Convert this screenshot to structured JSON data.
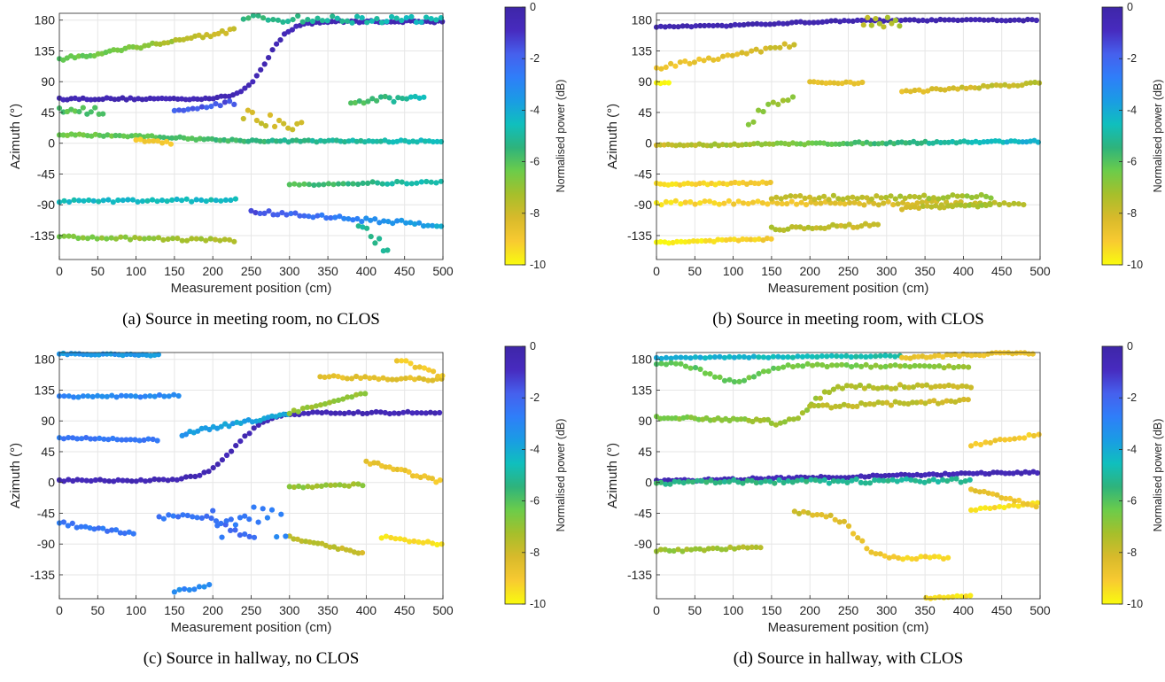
{
  "panel_defs": [
    {
      "caption": "(a) Source in meeting room, no CLOS",
      "tracks": [
        {
          "x0": 0,
          "x1": 500,
          "y0": 65,
          "y1": 178,
          "pw0": -0.5,
          "pw1": -0.5,
          "shape": "sig",
          "mid": 270,
          "w": 60,
          "jit": 1.5
        },
        {
          "x0": 0,
          "x1": 500,
          "y0": 12,
          "y1": 3,
          "pw0": -6.5,
          "pw1": -4.5,
          "shape": "sig",
          "mid": 160,
          "w": 150,
          "jit": 1.5
        },
        {
          "x0": 0,
          "x1": 230,
          "y0": 122,
          "y1": 165,
          "pw0": -6,
          "pw1": -8,
          "shape": "lin",
          "jit": 3
        },
        {
          "x0": 240,
          "x1": 500,
          "y0": 182,
          "y1": 180,
          "pw0": -5.5,
          "pw1": -4.5,
          "shape": "lin",
          "jit": 5
        },
        {
          "x0": 0,
          "x1": 230,
          "y0": -85,
          "y1": -83,
          "pw0": -4.5,
          "pw1": -4.5,
          "shape": "lin",
          "jit": 2
        },
        {
          "x0": 300,
          "x1": 500,
          "y0": -60,
          "y1": -57,
          "pw0": -6,
          "pw1": -4.5,
          "shape": "lin",
          "jit": 2
        },
        {
          "x0": 0,
          "x1": 230,
          "y0": -137,
          "y1": -142,
          "pw0": -6.5,
          "pw1": -7.5,
          "shape": "lin",
          "jit": 2
        },
        {
          "x0": 250,
          "x1": 500,
          "y0": -100,
          "y1": -120,
          "pw0": -1.5,
          "pw1": -4,
          "shape": "lin",
          "jit": 3
        },
        {
          "x0": 100,
          "x1": 150,
          "y0": 5,
          "y1": 0,
          "pw0": -9,
          "pw1": -9,
          "shape": "lin",
          "jit": 2
        },
        {
          "x0": 0,
          "x1": 60,
          "y0": 50,
          "y1": 45,
          "pw0": -6,
          "pw1": -6,
          "shape": "lin",
          "jit": 6
        },
        {
          "x0": 380,
          "x1": 480,
          "y0": 60,
          "y1": 68,
          "pw0": -6,
          "pw1": -4.5,
          "shape": "lin",
          "jit": 5
        },
        {
          "x0": 390,
          "x1": 430,
          "y0": -120,
          "y1": -160,
          "pw0": -5,
          "pw1": -5,
          "shape": "lin",
          "jit": 8
        },
        {
          "x0": 240,
          "x1": 320,
          "y0": 40,
          "y1": 30,
          "pw0": -8,
          "pw1": -8,
          "shape": "lin",
          "jit": 12
        },
        {
          "x0": 150,
          "x1": 230,
          "y0": 45,
          "y1": 60,
          "pw0": -2,
          "pw1": -1.5,
          "shape": "lin",
          "jit": 3
        }
      ]
    },
    {
      "caption": "(b) Source in meeting room, with CLOS",
      "tracks": [
        {
          "x0": 0,
          "x1": 500,
          "y0": 170,
          "y1": 180,
          "pw0": -0.3,
          "pw1": -0.3,
          "shape": "sig",
          "mid": 150,
          "w": 200,
          "jit": 1
        },
        {
          "x0": 0,
          "x1": 500,
          "y0": -3,
          "y1": 3,
          "pw0": -8,
          "pw1": -4,
          "shape": "lin",
          "jit": 1.5
        },
        {
          "x0": 0,
          "x1": 180,
          "y0": 110,
          "y1": 145,
          "pw0": -9,
          "pw1": -8,
          "shape": "lin",
          "jit": 3
        },
        {
          "x0": 0,
          "x1": 150,
          "y0": -60,
          "y1": -58,
          "pw0": -9.5,
          "pw1": -9,
          "shape": "lin",
          "jit": 1.5
        },
        {
          "x0": 0,
          "x1": 480,
          "y0": -87,
          "y1": -88,
          "pw0": -9.5,
          "pw1": -7.5,
          "shape": "lin",
          "jit": 3
        },
        {
          "x0": 0,
          "x1": 150,
          "y0": -145,
          "y1": -140,
          "pw0": -10,
          "pw1": -9,
          "shape": "lin",
          "jit": 1.5
        },
        {
          "x0": 150,
          "x1": 290,
          "y0": -125,
          "y1": -120,
          "pw0": -7.5,
          "pw1": -8,
          "shape": "lin",
          "jit": 3
        },
        {
          "x0": 150,
          "x1": 440,
          "y0": -80,
          "y1": -78,
          "pw0": -8,
          "pw1": -7,
          "shape": "lin",
          "jit": 3
        },
        {
          "x0": 320,
          "x1": 440,
          "y0": -95,
          "y1": -90,
          "pw0": -8,
          "pw1": -7,
          "shape": "lin",
          "jit": 2
        },
        {
          "x0": 320,
          "x1": 500,
          "y0": 75,
          "y1": 88,
          "pw0": -8.5,
          "pw1": -7.5,
          "shape": "lin",
          "jit": 2
        },
        {
          "x0": 200,
          "x1": 270,
          "y0": 88,
          "y1": 88,
          "pw0": -8.5,
          "pw1": -8.5,
          "shape": "lin",
          "jit": 2
        },
        {
          "x0": 270,
          "x1": 320,
          "y0": 178,
          "y1": 178,
          "pw0": -7.5,
          "pw1": -7.5,
          "shape": "lin",
          "jit": 8
        },
        {
          "x0": 0,
          "x1": 20,
          "y0": 90,
          "y1": 88,
          "pw0": -10,
          "pw1": -10,
          "shape": "lin",
          "jit": 2
        },
        {
          "x0": 120,
          "x1": 180,
          "y0": 35,
          "y1": 70,
          "pw0": -7,
          "pw1": -7,
          "shape": "lin",
          "jit": 8
        }
      ]
    },
    {
      "caption": "(c) Source in hallway, no CLOS",
      "tracks": [
        {
          "x0": 0,
          "x1": 500,
          "y0": 3,
          "y1": 102,
          "pw0": -0.5,
          "pw1": -0.5,
          "shape": "sig",
          "mid": 230,
          "w": 80,
          "jit": 1.5
        },
        {
          "x0": 0,
          "x1": 130,
          "y0": 188,
          "y1": 186,
          "pw0": -3.5,
          "pw1": -3.5,
          "shape": "lin",
          "jit": 1
        },
        {
          "x0": 0,
          "x1": 160,
          "y0": 125,
          "y1": 127,
          "pw0": -3,
          "pw1": -3,
          "shape": "lin",
          "jit": 1.5
        },
        {
          "x0": 0,
          "x1": 130,
          "y0": 65,
          "y1": 62,
          "pw0": -2.5,
          "pw1": -2.5,
          "shape": "lin",
          "jit": 1.5
        },
        {
          "x0": 0,
          "x1": 100,
          "y0": -60,
          "y1": -75,
          "pw0": -2.5,
          "pw1": -2.5,
          "shape": "lin",
          "jit": 3
        },
        {
          "x0": 130,
          "x1": 260,
          "y0": -50,
          "y1": -80,
          "pw0": -2.5,
          "pw1": -2,
          "shape": "sig",
          "mid": 220,
          "w": 40,
          "jit": 3
        },
        {
          "x0": 160,
          "x1": 300,
          "y0": 70,
          "y1": 102,
          "pw0": -3.5,
          "pw1": -4,
          "shape": "lin",
          "jit": 3
        },
        {
          "x0": 300,
          "x1": 400,
          "y0": 102,
          "y1": 130,
          "pw0": -7,
          "pw1": -7,
          "shape": "lin",
          "jit": 2
        },
        {
          "x0": 300,
          "x1": 400,
          "y0": -7,
          "y1": -3,
          "pw0": -7,
          "pw1": -7,
          "shape": "lin",
          "jit": 1.5
        },
        {
          "x0": 300,
          "x1": 400,
          "y0": -80,
          "y1": -105,
          "pw0": -7.5,
          "pw1": -8,
          "shape": "lin",
          "jit": 2
        },
        {
          "x0": 340,
          "x1": 500,
          "y0": 155,
          "y1": 150,
          "pw0": -8.5,
          "pw1": -8.5,
          "shape": "lin",
          "jit": 2
        },
        {
          "x0": 400,
          "x1": 500,
          "y0": 30,
          "y1": 0,
          "pw0": -8.5,
          "pw1": -9,
          "shape": "lin",
          "jit": 3
        },
        {
          "x0": 420,
          "x1": 500,
          "y0": -80,
          "y1": -90,
          "pw0": -9.5,
          "pw1": -9.5,
          "shape": "lin",
          "jit": 2
        },
        {
          "x0": 440,
          "x1": 500,
          "y0": 180,
          "y1": 155,
          "pw0": -9,
          "pw1": -9,
          "shape": "lin",
          "jit": 3
        },
        {
          "x0": 150,
          "x1": 200,
          "y0": -160,
          "y1": -150,
          "pw0": -3,
          "pw1": -3,
          "shape": "lin",
          "jit": 2
        },
        {
          "x0": 200,
          "x1": 300,
          "y0": -60,
          "y1": -60,
          "pw0": -2.5,
          "pw1": -3,
          "shape": "lin",
          "jit": 25
        }
      ]
    },
    {
      "caption": "(d) Source in hallway, with CLOS",
      "tracks": [
        {
          "x0": 0,
          "x1": 500,
          "y0": 2,
          "y1": 15,
          "pw0": -0.5,
          "pw1": -0.5,
          "shape": "lin",
          "jit": 1.5
        },
        {
          "x0": 0,
          "x1": 320,
          "y0": 182,
          "y1": 185,
          "pw0": -4,
          "pw1": -5,
          "shape": "lin",
          "jit": 1
        },
        {
          "x0": 0,
          "x1": 410,
          "y0": 175,
          "y1": 168,
          "pw0": -6,
          "pw1": -7,
          "shape": "dip",
          "mid": 100,
          "w": 90,
          "amp": 25,
          "jit": 2
        },
        {
          "x0": 320,
          "x1": 500,
          "y0": 183,
          "y1": 190,
          "pw0": -8.5,
          "pw1": -9,
          "shape": "lin",
          "jit": 2
        },
        {
          "x0": 0,
          "x1": 150,
          "y0": 95,
          "y1": 90,
          "pw0": -6.5,
          "pw1": -7,
          "shape": "lin",
          "jit": 2
        },
        {
          "x0": 150,
          "x1": 410,
          "y0": 85,
          "y1": 140,
          "pw0": -7,
          "pw1": -8,
          "shape": "sig",
          "mid": 200,
          "w": 50,
          "jit": 3
        },
        {
          "x0": 200,
          "x1": 410,
          "y0": 110,
          "y1": 120,
          "pw0": -7.5,
          "pw1": -8,
          "shape": "lin",
          "jit": 3
        },
        {
          "x0": 0,
          "x1": 410,
          "y0": 0,
          "y1": 3,
          "pw0": -5.5,
          "pw1": -5,
          "shape": "lin",
          "jit": 3
        },
        {
          "x0": 0,
          "x1": 140,
          "y0": -100,
          "y1": -95,
          "pw0": -7,
          "pw1": -7.5,
          "shape": "lin",
          "jit": 2
        },
        {
          "x0": 180,
          "x1": 380,
          "y0": -45,
          "y1": -110,
          "pw0": -8,
          "pw1": -9.5,
          "shape": "sig",
          "mid": 260,
          "w": 50,
          "jit": 3
        },
        {
          "x0": 410,
          "x1": 500,
          "y0": -40,
          "y1": -30,
          "pw0": -9.5,
          "pw1": -9.5,
          "shape": "lin",
          "jit": 1.5
        },
        {
          "x0": 410,
          "x1": 500,
          "y0": 55,
          "y1": 70,
          "pw0": -9,
          "pw1": -9,
          "shape": "lin",
          "jit": 2
        },
        {
          "x0": 410,
          "x1": 500,
          "y0": -10,
          "y1": -35,
          "pw0": -8.5,
          "pw1": -9,
          "shape": "lin",
          "jit": 2
        },
        {
          "x0": 340,
          "x1": 410,
          "y0": -170,
          "y1": -165,
          "pw0": -9.5,
          "pw1": -9.5,
          "shape": "lin",
          "jit": 1
        }
      ]
    }
  ],
  "chart_data": [
    {
      "type": "scatter",
      "title": "",
      "xlabel": "Measurement position (cm)",
      "ylabel": "Azimuth (°)",
      "xlim": [
        0,
        500
      ],
      "ylim": [
        -170,
        190
      ],
      "grid": true,
      "xticks": [
        0,
        50,
        100,
        150,
        200,
        250,
        300,
        350,
        400,
        450,
        500
      ],
      "yticks": [
        -135,
        -90,
        -45,
        0,
        45,
        90,
        135,
        180
      ],
      "colorbar": {
        "label": "Normalised power (dB)",
        "min": -10,
        "max": 0,
        "ticks": [
          0,
          -2,
          -4,
          -6,
          -8,
          -10
        ]
      }
    },
    {
      "type": "scatter",
      "title": "",
      "xlabel": "Measurement position (cm)",
      "ylabel": "Azimuth (°)",
      "xlim": [
        0,
        500
      ],
      "ylim": [
        -170,
        190
      ],
      "grid": true,
      "xticks": [
        0,
        50,
        100,
        150,
        200,
        250,
        300,
        350,
        400,
        450,
        500
      ],
      "yticks": [
        -135,
        -90,
        -45,
        0,
        45,
        90,
        135,
        180
      ],
      "colorbar": {
        "label": "Normalised power (dB)",
        "min": -10,
        "max": 0,
        "ticks": [
          0,
          -2,
          -4,
          -6,
          -8,
          -10
        ]
      }
    },
    {
      "type": "scatter",
      "title": "",
      "xlabel": "Measurement position (cm)",
      "ylabel": "Azimuth (°)",
      "xlim": [
        0,
        500
      ],
      "ylim": [
        -170,
        190
      ],
      "grid": true,
      "xticks": [
        0,
        50,
        100,
        150,
        200,
        250,
        300,
        350,
        400,
        450,
        500
      ],
      "yticks": [
        -135,
        -90,
        -45,
        0,
        45,
        90,
        135,
        180
      ],
      "colorbar": {
        "label": "Normalised power (dB)",
        "min": -10,
        "max": 0,
        "ticks": [
          0,
          -2,
          -4,
          -6,
          -8,
          -10
        ]
      }
    },
    {
      "type": "scatter",
      "title": "",
      "xlabel": "Measurement position (cm)",
      "ylabel": "Azimuth (°)",
      "xlim": [
        0,
        500
      ],
      "ylim": [
        -170,
        190
      ],
      "grid": true,
      "xticks": [
        0,
        50,
        100,
        150,
        200,
        250,
        300,
        350,
        400,
        450,
        500
      ],
      "yticks": [
        -135,
        -90,
        -45,
        0,
        45,
        90,
        135,
        180
      ],
      "colorbar": {
        "label": "Normalised power (dB)",
        "min": -10,
        "max": 0,
        "ticks": [
          0,
          -2,
          -4,
          -6,
          -8,
          -10
        ]
      }
    }
  ],
  "colormap": [
    "#f9fb0e",
    "#f8ca31",
    "#d8ba2b",
    "#a7bf2b",
    "#6ccc4a",
    "#2eb37c",
    "#10bfbd",
    "#1a9ce4",
    "#2f7ef9",
    "#4660ed",
    "#472bbf",
    "#3e26a8"
  ]
}
